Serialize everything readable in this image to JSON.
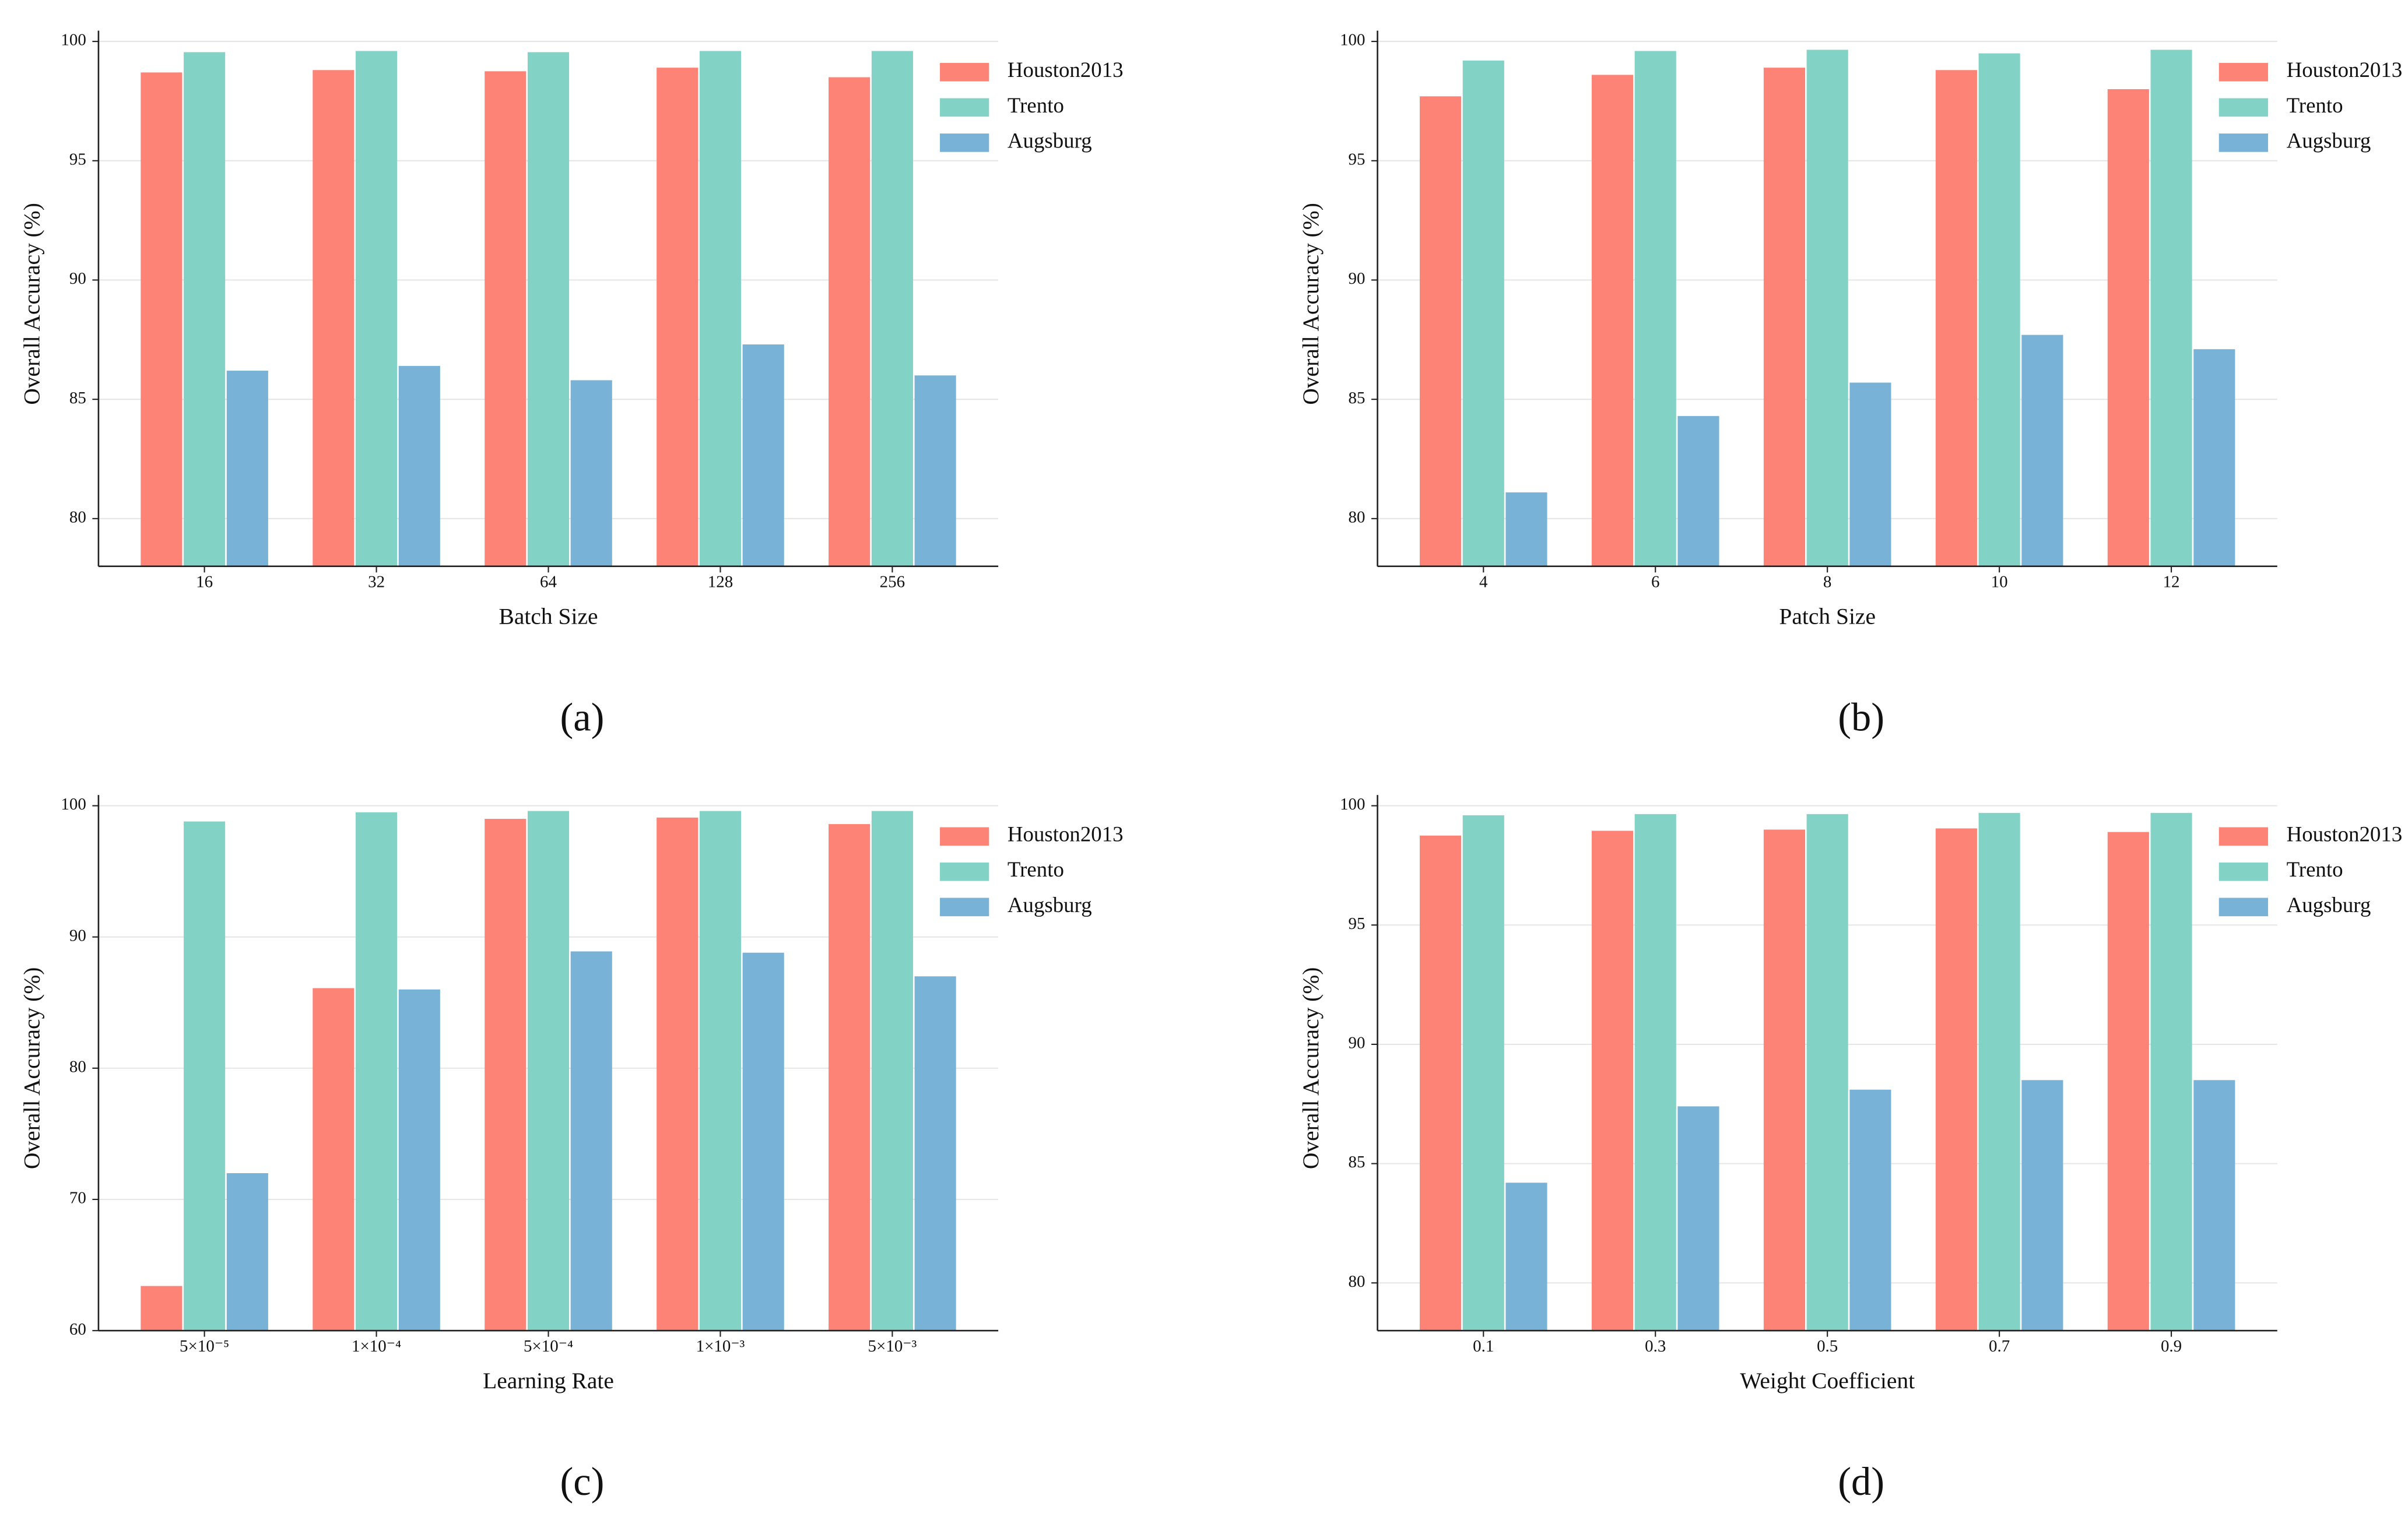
{
  "chart_data": [
    {
      "type": "bar",
      "panel_label": "(a)",
      "xlabel": "Batch Size",
      "ylabel": "Overall Accuracy (%)",
      "categories": [
        "16",
        "32",
        "64",
        "128",
        "256"
      ],
      "series": [
        {
          "name": "Houston2013",
          "color": "#fd8376",
          "values": [
            98.7,
            98.8,
            98.75,
            98.9,
            98.5
          ]
        },
        {
          "name": "Trento",
          "color": "#82d3c6",
          "values": [
            99.55,
            99.6,
            99.55,
            99.6,
            99.6
          ]
        },
        {
          "name": "Augsburg",
          "color": "#78b2d6",
          "values": [
            86.2,
            86.4,
            85.8,
            87.3,
            86.0
          ]
        }
      ],
      "ylim": [
        78,
        100
      ],
      "yticks": [
        80,
        85,
        90,
        95,
        100
      ],
      "grid": true,
      "legend": "upper right"
    },
    {
      "type": "bar",
      "panel_label": "(b)",
      "xlabel": "Patch Size",
      "ylabel": "Overall Accuracy (%)",
      "categories": [
        "4",
        "6",
        "8",
        "10",
        "12"
      ],
      "series": [
        {
          "name": "Houston2013",
          "color": "#fd8376",
          "values": [
            97.7,
            98.6,
            98.9,
            98.8,
            98.0
          ]
        },
        {
          "name": "Trento",
          "color": "#82d3c6",
          "values": [
            99.2,
            99.6,
            99.65,
            99.5,
            99.65
          ]
        },
        {
          "name": "Augsburg",
          "color": "#78b2d6",
          "values": [
            81.1,
            84.3,
            85.7,
            87.7,
            87.1
          ]
        }
      ],
      "ylim": [
        78,
        100
      ],
      "yticks": [
        80,
        85,
        90,
        95,
        100
      ],
      "grid": true,
      "legend": "upper right"
    },
    {
      "type": "bar",
      "panel_label": "(c)",
      "xlabel": "Learning Rate",
      "ylabel": "Overall Accuracy (%)",
      "categories": [
        "5×10⁻⁵",
        "1×10⁻⁴",
        "5×10⁻⁴",
        "1×10⁻³",
        "5×10⁻³"
      ],
      "series": [
        {
          "name": "Houston2013",
          "color": "#fd8376",
          "values": [
            63.4,
            86.1,
            99.0,
            99.1,
            98.6
          ]
        },
        {
          "name": "Trento",
          "color": "#82d3c6",
          "values": [
            98.8,
            99.5,
            99.6,
            99.6,
            99.6
          ]
        },
        {
          "name": "Augsburg",
          "color": "#78b2d6",
          "values": [
            72.0,
            86.0,
            88.9,
            88.8,
            87.0
          ]
        }
      ],
      "ylim": [
        60,
        100
      ],
      "yticks": [
        60,
        70,
        80,
        90,
        100
      ],
      "grid": true,
      "legend": "upper right"
    },
    {
      "type": "bar",
      "panel_label": "(d)",
      "xlabel": "Weight Coefficient",
      "ylabel": "Overall Accuracy (%)",
      "categories": [
        "0.1",
        "0.3",
        "0.5",
        "0.7",
        "0.9"
      ],
      "series": [
        {
          "name": "Houston2013",
          "color": "#fd8376",
          "values": [
            98.75,
            98.95,
            99.0,
            99.05,
            98.9
          ]
        },
        {
          "name": "Trento",
          "color": "#82d3c6",
          "values": [
            99.6,
            99.65,
            99.65,
            99.7,
            99.7
          ]
        },
        {
          "name": "Augsburg",
          "color": "#78b2d6",
          "values": [
            84.2,
            87.4,
            88.1,
            88.5,
            88.5
          ]
        }
      ],
      "ylim": [
        78,
        100
      ],
      "yticks": [
        80,
        85,
        90,
        95,
        100
      ],
      "grid": true,
      "legend": "upper right"
    }
  ]
}
